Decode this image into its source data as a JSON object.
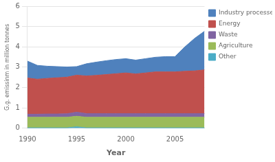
{
  "chart_data": {
    "type": "area",
    "x": [
      1990,
      1991,
      1992,
      1993,
      1994,
      1995,
      1996,
      1997,
      1998,
      1999,
      2000,
      2001,
      2002,
      2003,
      2004,
      2005,
      2006,
      2007,
      2008
    ],
    "series": [
      {
        "name": "Other",
        "color": "#4BACC6",
        "values": [
          0.02,
          0.02,
          0.02,
          0.02,
          0.02,
          0.07,
          0.02,
          0.02,
          0.02,
          0.02,
          0.02,
          0.02,
          0.02,
          0.02,
          0.02,
          0.02,
          0.02,
          0.02,
          0.02
        ]
      },
      {
        "name": "Agriculture",
        "color": "#9BBB59",
        "values": [
          0.52,
          0.52,
          0.52,
          0.52,
          0.52,
          0.52,
          0.52,
          0.52,
          0.52,
          0.52,
          0.52,
          0.52,
          0.52,
          0.52,
          0.52,
          0.52,
          0.52,
          0.52,
          0.52
        ]
      },
      {
        "name": "Waste",
        "color": "#8064A2",
        "values": [
          0.15,
          0.15,
          0.16,
          0.16,
          0.17,
          0.2,
          0.18,
          0.18,
          0.18,
          0.18,
          0.18,
          0.18,
          0.18,
          0.18,
          0.18,
          0.18,
          0.18,
          0.18,
          0.18
        ]
      },
      {
        "name": "Energy",
        "color": "#C0504D",
        "values": [
          1.78,
          1.72,
          1.75,
          1.78,
          1.8,
          1.82,
          1.85,
          1.88,
          1.92,
          1.96,
          2.0,
          1.95,
          2.0,
          2.05,
          2.05,
          2.05,
          2.08,
          2.1,
          2.15
        ]
      },
      {
        "name": "Industry processes",
        "color": "#4F81BD",
        "values": [
          0.83,
          0.68,
          0.6,
          0.55,
          0.5,
          0.42,
          0.6,
          0.65,
          0.68,
          0.7,
          0.7,
          0.68,
          0.7,
          0.72,
          0.75,
          0.75,
          1.2,
          1.6,
          1.9
        ]
      }
    ],
    "xlabel": "Year",
    "ylabel": "G.g. emissinm in million tonnes",
    "xlim": [
      1990,
      2008
    ],
    "xticks": [
      1990,
      1995,
      2000,
      2005
    ],
    "ylim": [
      0,
      6
    ],
    "yticks": [
      0,
      1,
      2,
      3,
      4,
      5,
      6
    ],
    "stacked": true,
    "grid": "y",
    "legend": "right"
  }
}
